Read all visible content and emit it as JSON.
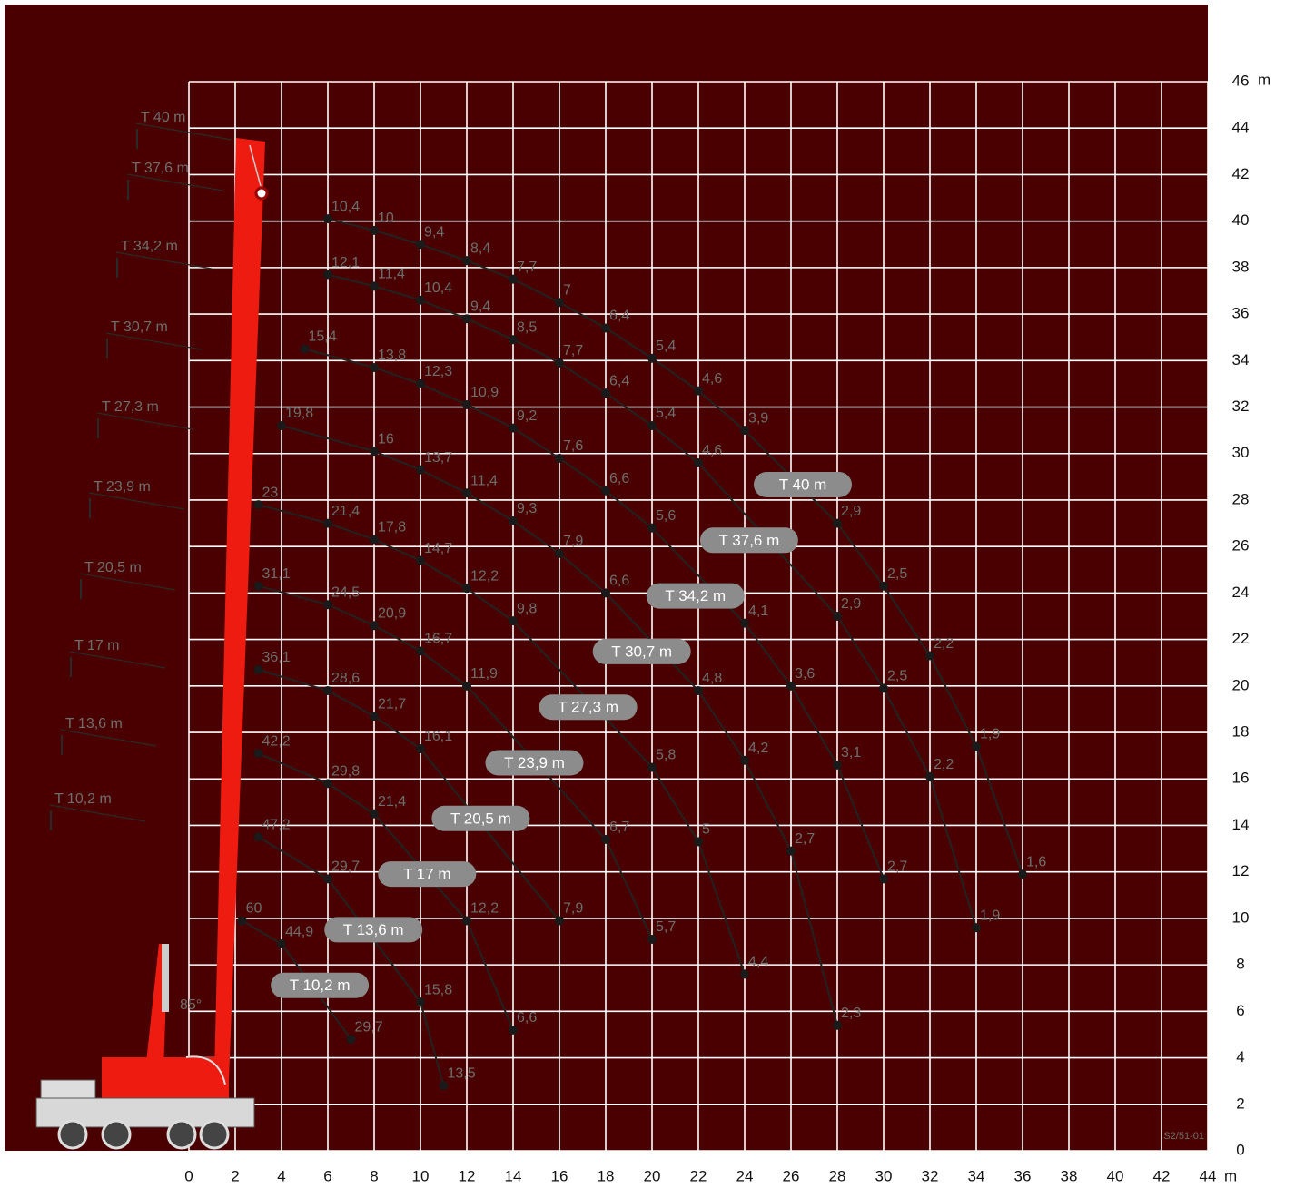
{
  "chart_data": {
    "type": "line",
    "xlabel": "m",
    "ylabel": "m",
    "xlim": [
      0,
      44
    ],
    "ylim": [
      0,
      46
    ],
    "xticks": [
      0,
      2,
      4,
      6,
      8,
      10,
      12,
      14,
      16,
      18,
      20,
      22,
      24,
      26,
      28,
      30,
      32,
      34,
      36,
      38,
      40,
      42,
      44
    ],
    "yticks": [
      0,
      2,
      4,
      6,
      8,
      10,
      12,
      14,
      16,
      18,
      20,
      22,
      24,
      26,
      28,
      30,
      32,
      34,
      36,
      38,
      40,
      42,
      44,
      46
    ],
    "grid": true,
    "background": "#4a0000",
    "color": "#222222",
    "angle_label": "85°",
    "code": "S2/51-01",
    "series": [
      {
        "name": "T 40 m",
        "x": [
          6,
          8,
          10,
          12,
          14,
          16,
          18,
          20,
          22,
          24,
          28,
          30,
          32,
          34,
          36
        ],
        "values": [
          40.1,
          39.6,
          39.0,
          38.3,
          37.5,
          36.5,
          35.4,
          34.1,
          32.7,
          31.0,
          27.0,
          24.3,
          21.3,
          17.4,
          11.9
        ],
        "loads": [
          "10,4",
          "10",
          "9,4",
          "8,4",
          "7,7",
          "7",
          "6,4",
          "5,4",
          "4,6",
          "3,9",
          "2,9",
          "2,5",
          "2,2",
          "1,9",
          "1,6"
        ]
      },
      {
        "name": "T 37,6 m",
        "x": [
          6,
          8,
          10,
          12,
          14,
          16,
          18,
          20,
          22,
          28,
          30,
          32,
          34
        ],
        "values": [
          37.7,
          37.2,
          36.6,
          35.8,
          34.9,
          33.9,
          32.6,
          31.2,
          29.6,
          23.0,
          19.9,
          16.1,
          9.6
        ],
        "loads": [
          "12,1",
          "11,4",
          "10,4",
          "9,4",
          "8,5",
          "7,7",
          "6,4",
          "5,4",
          "4,6",
          "2,9",
          "2,5",
          "2,2",
          "1,9"
        ]
      },
      {
        "name": "T 34,2 m",
        "x": [
          5,
          8,
          10,
          12,
          14,
          16,
          18,
          20,
          24,
          26,
          28,
          30
        ],
        "values": [
          34.5,
          33.7,
          33.0,
          32.1,
          31.1,
          29.8,
          28.4,
          26.8,
          22.7,
          20.0,
          16.6,
          11.7
        ],
        "loads": [
          "15,4",
          "13,8",
          "12,3",
          "10,9",
          "9,2",
          "7,6",
          "6,6",
          "5,6",
          "4,1",
          "3,6",
          "3,1",
          "2,7"
        ]
      },
      {
        "name": "T 30,7 m",
        "x": [
          4,
          8,
          10,
          12,
          14,
          16,
          18,
          22,
          24,
          26,
          28
        ],
        "values": [
          31.2,
          30.1,
          29.3,
          28.3,
          27.1,
          25.7,
          24.0,
          19.8,
          16.8,
          12.9,
          5.4
        ],
        "loads": [
          "19,8",
          "16",
          "13,7",
          "11,4",
          "9,3",
          "7,9",
          "6,6",
          "4,8",
          "4,2",
          "2,7",
          "2,3"
        ]
      },
      {
        "name": "T 27,3 m",
        "x": [
          3,
          6,
          8,
          10,
          12,
          14,
          20,
          22,
          24
        ],
        "values": [
          27.8,
          27.0,
          26.3,
          25.4,
          24.2,
          22.8,
          16.5,
          13.3,
          7.6
        ],
        "loads": [
          "23",
          "21,4",
          "17,8",
          "14,7",
          "12,2",
          "9,8",
          "5,8",
          "5",
          "4,4"
        ]
      },
      {
        "name": "T 23,9 m",
        "x": [
          3,
          6,
          8,
          10,
          12,
          18,
          20
        ],
        "values": [
          24.3,
          23.5,
          22.6,
          21.5,
          20.0,
          13.4,
          9.1
        ],
        "loads": [
          "31,1",
          "24,5",
          "20,9",
          "16,7",
          "11,9",
          "6,7",
          "5,7"
        ]
      },
      {
        "name": "T 20,5 m",
        "x": [
          3,
          6,
          8,
          10,
          16
        ],
        "values": [
          20.7,
          19.8,
          18.7,
          17.3,
          9.9
        ],
        "loads": [
          "36,1",
          "28,6",
          "21,7",
          "16,1",
          "7,9"
        ]
      },
      {
        "name": "T 17 m",
        "x": [
          3,
          6,
          8,
          12,
          14
        ],
        "values": [
          17.1,
          15.8,
          14.5,
          9.9,
          5.2
        ],
        "loads": [
          "42,2",
          "29,8",
          "21,4",
          "12,2",
          "6,6"
        ]
      },
      {
        "name": "T 13,6 m",
        "x": [
          3,
          6,
          10,
          11
        ],
        "values": [
          13.5,
          11.7,
          6.4,
          2.8
        ],
        "loads": [
          "47,2",
          "29,7",
          "15,8",
          "13,5"
        ]
      },
      {
        "name": "T 10,2 m",
        "x": [
          2.3,
          4,
          7
        ],
        "values": [
          9.9,
          8.9,
          4.8
        ],
        "loads": [
          "60",
          "44,9",
          "29,7"
        ]
      }
    ]
  }
}
